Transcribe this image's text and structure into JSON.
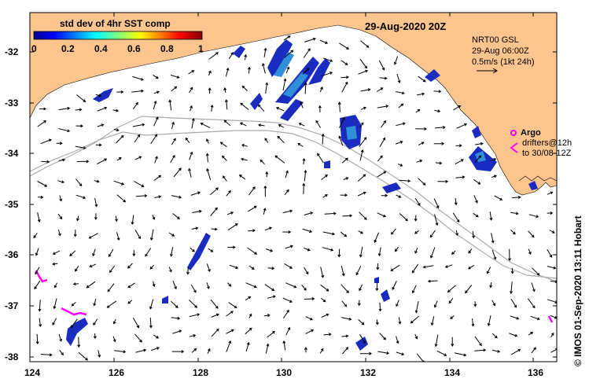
{
  "title_date": "29-Aug-2020 20Z",
  "colorbar": {
    "title": "std dev of 4hr SST comp",
    "ticks": [
      "0",
      "0.2",
      "0.4",
      "0.6",
      "0.8",
      "1"
    ]
  },
  "velocity_legend": {
    "line1": "NRT00 GSL",
    "line2": "29-Aug 06:00Z",
    "line3": "0.5m/s (1kt 24h)"
  },
  "argo_legend": {
    "label": "Argo",
    "drifters_line1": "drifters@12h",
    "drifters_line2": "to 30/08-12Z",
    "color": "#ff00ff"
  },
  "credit": "© IMOS 01-Sep-2020 13:11 Hobart",
  "axes": {
    "x_ticks": [
      "124",
      "126",
      "128",
      "130",
      "132",
      "134",
      "136"
    ],
    "y_ticks": [
      "-32",
      "-33",
      "-34",
      "-35",
      "-36",
      "-37",
      "-38"
    ],
    "lon_range": [
      124,
      136.6
    ],
    "lat_range": [
      -38.1,
      -31.3
    ]
  },
  "colors": {
    "land": "#fdc58e",
    "ocean": "#ffffff",
    "contour": "#aaaaaa",
    "sst_high": "#1a2cc0",
    "sst_mid": "#2f8fd8",
    "argo": "#ff00ff"
  }
}
